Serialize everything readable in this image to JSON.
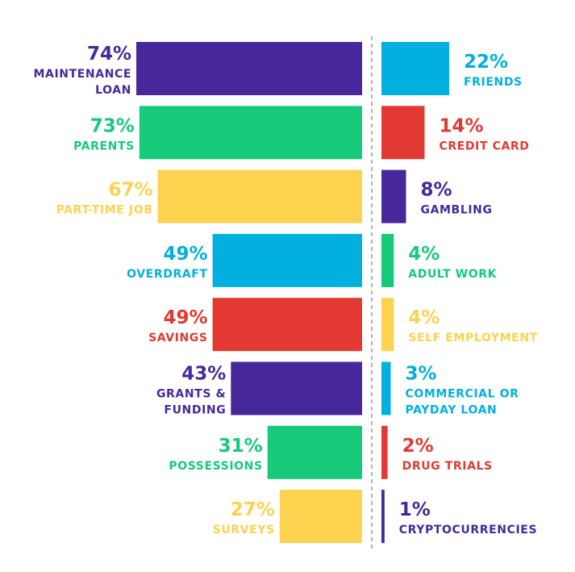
{
  "chart_data": {
    "type": "bar",
    "colors": {
      "purple": "#46289a",
      "green": "#17c97a",
      "yellow": "#fdd24f",
      "blue": "#02b0e0",
      "red": "#e23a33"
    },
    "left": [
      {
        "value": 74,
        "display": "74%",
        "label": [
          "MAINTENANCE",
          "LOAN"
        ],
        "color": "purple"
      },
      {
        "value": 73,
        "display": "73%",
        "label": [
          "PARENTS"
        ],
        "color": "green"
      },
      {
        "value": 67,
        "display": "67%",
        "label": [
          "PART-TIME JOB"
        ],
        "color": "yellow"
      },
      {
        "value": 49,
        "display": "49%",
        "label": [
          "OVERDRAFT"
        ],
        "color": "blue"
      },
      {
        "value": 49,
        "display": "49%",
        "label": [
          "SAVINGS"
        ],
        "color": "red"
      },
      {
        "value": 43,
        "display": "43%",
        "label": [
          "GRANTS &",
          "FUNDING"
        ],
        "color": "purple"
      },
      {
        "value": 31,
        "display": "31%",
        "label": [
          "POSSESSIONS"
        ],
        "color": "green"
      },
      {
        "value": 27,
        "display": "27%",
        "label": [
          "SURVEYS"
        ],
        "color": "yellow"
      }
    ],
    "right": [
      {
        "value": 22,
        "display": "22%",
        "label": [
          "FRIENDS"
        ],
        "color": "blue"
      },
      {
        "value": 14,
        "display": "14%",
        "label": [
          "CREDIT CARD"
        ],
        "color": "red"
      },
      {
        "value": 8,
        "display": "8%",
        "label": [
          "GAMBLING"
        ],
        "color": "purple"
      },
      {
        "value": 4,
        "display": "4%",
        "label": [
          "ADULT WORK"
        ],
        "color": "green"
      },
      {
        "value": 4,
        "display": "4%",
        "label": [
          "SELF EMPLOYMENT"
        ],
        "color": "yellow"
      },
      {
        "value": 3,
        "display": "3%",
        "label": [
          "COMMERCIAL OR",
          "PAYDAY LOAN"
        ],
        "color": "blue"
      },
      {
        "value": 2,
        "display": "2%",
        "label": [
          "DRUG TRIALS"
        ],
        "color": "red"
      },
      {
        "value": 1,
        "display": "1%",
        "label": [
          "CRYPTOCURRENCIES"
        ],
        "color": "purple"
      }
    ]
  }
}
